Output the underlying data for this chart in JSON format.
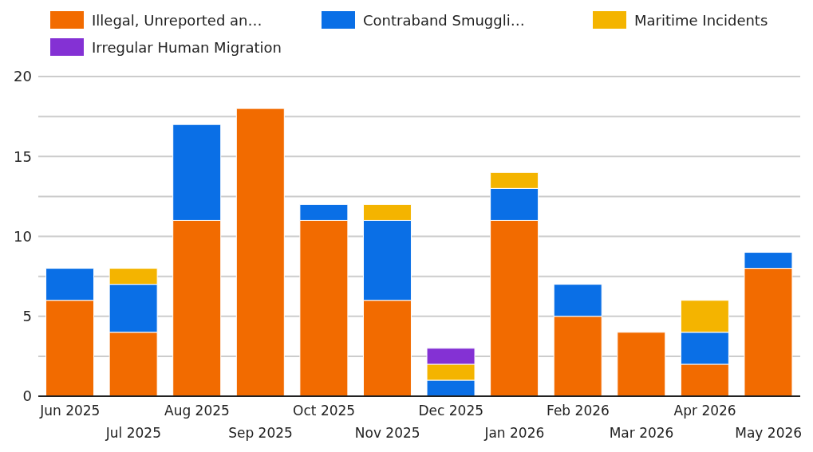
{
  "chart_data": {
    "type": "bar",
    "stacked": true,
    "legend": "top",
    "grid": "y",
    "categories": [
      "Jun 2025",
      "Jul 2025",
      "Aug 2025",
      "Sep 2025",
      "Oct 2025",
      "Nov 2025",
      "Dec 2025",
      "Jan 2026",
      "Feb 2026",
      "Mar 2026",
      "Apr 2026",
      "May 2026"
    ],
    "series": [
      {
        "name": "Illegal, Unreported an…",
        "color": "#f26b00",
        "values": [
          6,
          4,
          11,
          18,
          11,
          6,
          0,
          11,
          5,
          4,
          2,
          8
        ]
      },
      {
        "name": "Contraband Smuggli…",
        "color": "#0a6fe6",
        "values": [
          2,
          3,
          6,
          0,
          1,
          5,
          1,
          2,
          2,
          0,
          2,
          1
        ]
      },
      {
        "name": "Maritime Incidents",
        "color": "#f4b400",
        "values": [
          0,
          1,
          0,
          0,
          0,
          1,
          1,
          1,
          0,
          0,
          2,
          0
        ]
      },
      {
        "name": "Irregular Human Migration",
        "color": "#8431d4",
        "values": [
          0,
          0,
          0,
          0,
          0,
          0,
          1,
          0,
          0,
          0,
          0,
          0
        ]
      }
    ],
    "ylim": [
      0,
      20
    ],
    "yticks": [
      0,
      {
        "value": 2.5,
        "label": null
      },
      5,
      {
        "value": 7.5,
        "label": null
      },
      10,
      {
        "value": 12.5,
        "label": null
      },
      15,
      {
        "value": 17.5,
        "label": null
      },
      20
    ]
  }
}
